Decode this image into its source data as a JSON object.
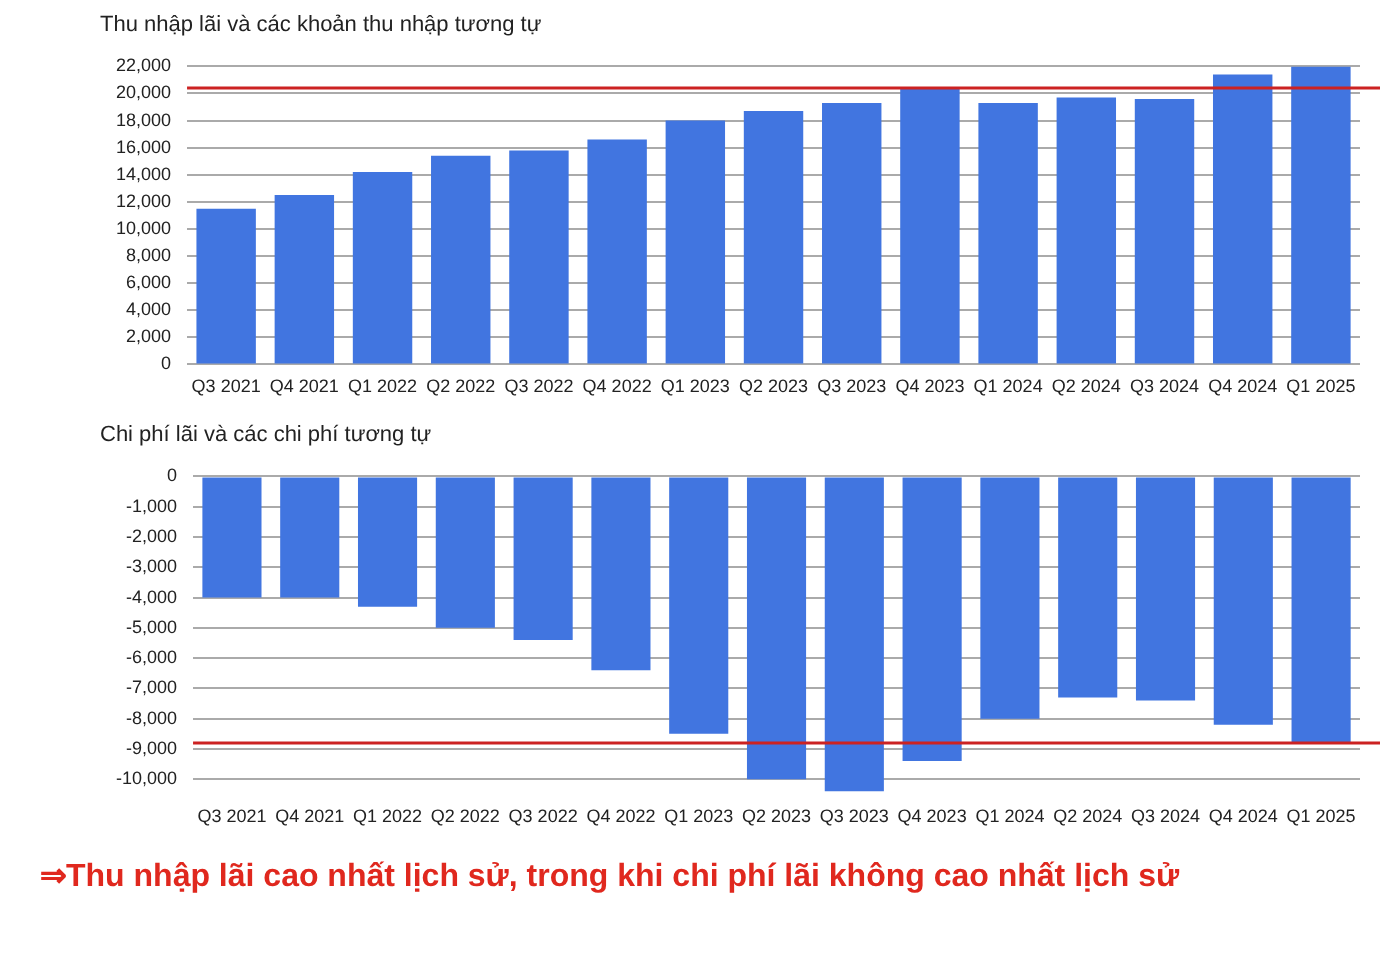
{
  "chart_data": [
    {
      "type": "bar",
      "title": "Thu nhập lãi và các khoản thu nhập tương tự",
      "categories": [
        "Q3 2021",
        "Q4 2021",
        "Q1 2022",
        "Q2 2022",
        "Q3 2022",
        "Q4 2022",
        "Q1 2023",
        "Q2 2023",
        "Q3 2023",
        "Q4 2023",
        "Q1 2024",
        "Q2 2024",
        "Q3 2024",
        "Q4 2024",
        "Q1 2025"
      ],
      "values": [
        11500,
        12500,
        14200,
        15400,
        15800,
        16600,
        18000,
        18700,
        19300,
        20400,
        19300,
        19700,
        19600,
        21400,
        22000
      ],
      "color": "#4175e0",
      "ylim": [
        0,
        22000
      ],
      "yticks": [
        0,
        {
          "value": 2000,
          "label": "2,000"
        },
        {
          "value": 4000,
          "label": "4,000"
        },
        {
          "value": 6000,
          "label": "6,000"
        },
        {
          "value": 8000,
          "label": "8,000"
        },
        {
          "value": 10000,
          "label": "10,000"
        },
        {
          "value": 12000,
          "label": "12,000"
        },
        {
          "value": 14000,
          "label": "14,000"
        },
        {
          "value": 16000,
          "label": "16,000"
        },
        {
          "value": 18000,
          "label": "18,000"
        },
        {
          "value": 20000,
          "label": "20,000"
        },
        {
          "value": 22000,
          "label": "22,000"
        }
      ],
      "grid": "y",
      "legend": false,
      "ref_lines": [
        {
          "axis": "y",
          "value": 20400,
          "color": "#cc2222"
        }
      ]
    },
    {
      "type": "bar",
      "title": "Chi phí lãi và các chi phí tương tự",
      "categories": [
        "Q3 2021",
        "Q4 2021",
        "Q1 2022",
        "Q2 2022",
        "Q3 2022",
        "Q4 2022",
        "Q1 2023",
        "Q2 2023",
        "Q3 2023",
        "Q4 2023",
        "Q1 2024",
        "Q2 2024",
        "Q3 2024",
        "Q4 2024",
        "Q1 2025"
      ],
      "values": [
        -4000,
        -4000,
        -4300,
        -5000,
        -5400,
        -6400,
        -8500,
        -10000,
        -10400,
        -9400,
        -8000,
        -7300,
        -7400,
        -8200,
        -8800
      ],
      "color": "#4175e0",
      "ylim": [
        -10500,
        0
      ],
      "yticks": [
        {
          "value": -10000,
          "label": "-10,000"
        },
        {
          "value": -9000,
          "label": "-9,000"
        },
        {
          "value": -8000,
          "label": "-8,000"
        },
        {
          "value": -7000,
          "label": "-7,000"
        },
        {
          "value": -6000,
          "label": "-6,000"
        },
        {
          "value": -5000,
          "label": "-5,000"
        },
        {
          "value": -4000,
          "label": "-4,000"
        },
        {
          "value": -3000,
          "label": "-3,000"
        },
        {
          "value": -2000,
          "label": "-2,000"
        },
        {
          "value": -1000,
          "label": "-1,000"
        },
        0
      ],
      "grid": "y",
      "legend": false,
      "ref_lines": [
        {
          "axis": "y",
          "value": -8800,
          "color": "#cc2222"
        }
      ],
      "annotations": [
        "⇒Thu nhập lãi cao nhất lịch sử, trong khi chi phí lãi không cao nhất lịch sử"
      ]
    }
  ]
}
